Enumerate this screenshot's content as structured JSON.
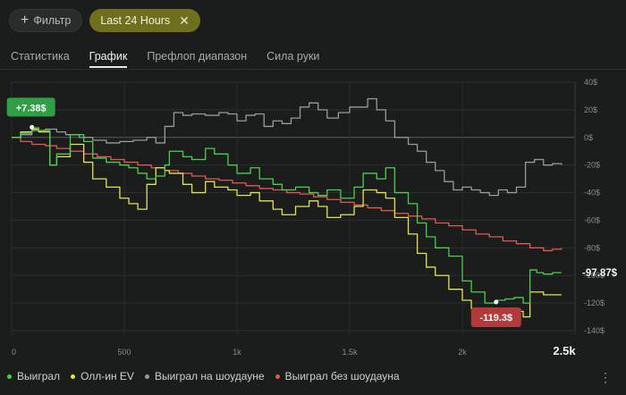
{
  "filters": {
    "add_label": "Фильтр",
    "active_chip": "Last 24 Hours"
  },
  "tabs": [
    {
      "label": "Статистика",
      "active": false
    },
    {
      "label": "График",
      "active": true
    },
    {
      "label": "Префлоп диапазон",
      "active": false
    },
    {
      "label": "Сила руки",
      "active": false
    }
  ],
  "colors": {
    "won": "#4ccf4c",
    "allin_ev": "#e4e34a",
    "showdown": "#9a9a9a",
    "no_showdown": "#e05a55"
  },
  "chart_data": {
    "type": "line",
    "x_ticks": [
      "0",
      "500",
      "1k",
      "1.5k",
      "2k",
      "2.5k"
    ],
    "y_ticks": [
      "40$",
      "20$",
      "0$",
      "-20$",
      "-40$",
      "-60$",
      "-80$",
      "-100$",
      "-120$",
      "-140$"
    ],
    "xlim": [
      0,
      2500
    ],
    "ylim": [
      -140,
      40
    ],
    "grid": true,
    "legend_position": "bottom-left",
    "annotations": {
      "max_label": "+7.38$",
      "min_label": "-119.3$",
      "end_label": "-97.87$"
    },
    "series": [
      {
        "name": "Выиграл",
        "color": "#4ccf4c",
        "x": [
          0,
          40,
          90,
          120,
          170,
          200,
          260,
          320,
          360,
          420,
          480,
          520,
          560,
          600,
          640,
          680,
          700,
          760,
          800,
          860,
          900,
          960,
          1000,
          1060,
          1100,
          1160,
          1200,
          1260,
          1320,
          1360,
          1400,
          1460,
          1520,
          1560,
          1620,
          1660,
          1700,
          1760,
          1800,
          1840,
          1880,
          1940,
          2000,
          2040,
          2100,
          2150,
          2190,
          2230,
          2270,
          2300,
          2330,
          2360,
          2400,
          2440
        ],
        "y": [
          0,
          3,
          7,
          5,
          -20,
          -12,
          2,
          -3,
          -15,
          -18,
          -20,
          -22,
          -26,
          -30,
          -28,
          -20,
          -10,
          -14,
          -16,
          -8,
          -12,
          -20,
          -26,
          -22,
          -30,
          -34,
          -38,
          -36,
          -40,
          -42,
          -38,
          -44,
          -36,
          -26,
          -30,
          -22,
          -40,
          -48,
          -62,
          -72,
          -80,
          -86,
          -104,
          -112,
          -120,
          -118,
          -117,
          -116,
          -120,
          -96,
          -98,
          -99,
          -98,
          -98
        ]
      },
      {
        "name": "Олл-ин EV",
        "color": "#e4e34a",
        "x": [
          0,
          40,
          90,
          120,
          170,
          200,
          260,
          320,
          360,
          420,
          480,
          520,
          560,
          600,
          640,
          680,
          700,
          760,
          800,
          860,
          900,
          960,
          1000,
          1060,
          1100,
          1160,
          1200,
          1260,
          1320,
          1360,
          1400,
          1460,
          1520,
          1560,
          1620,
          1660,
          1700,
          1760,
          1800,
          1840,
          1880,
          1940,
          2000,
          2040,
          2100,
          2150,
          2190,
          2230,
          2270,
          2300,
          2330,
          2360,
          2400,
          2440
        ],
        "y": [
          0,
          4,
          6,
          4,
          -20,
          -14,
          -5,
          -18,
          -30,
          -36,
          -44,
          -48,
          -52,
          -34,
          -22,
          -24,
          -26,
          -34,
          -40,
          -32,
          -36,
          -38,
          -42,
          -40,
          -46,
          -52,
          -56,
          -50,
          -46,
          -50,
          -58,
          -56,
          -50,
          -38,
          -40,
          -44,
          -58,
          -70,
          -84,
          -94,
          -100,
          -110,
          -118,
          -124,
          -128,
          -130,
          -128,
          -126,
          -130,
          -112,
          -112,
          -114,
          -114,
          -114
        ]
      },
      {
        "name": "Выиграл на шоудауне",
        "color": "#9a9a9a",
        "x": [
          0,
          40,
          90,
          150,
          200,
          240,
          300,
          360,
          420,
          480,
          540,
          600,
          640,
          680,
          720,
          760,
          800,
          860,
          920,
          960,
          1000,
          1040,
          1080,
          1120,
          1160,
          1200,
          1240,
          1280,
          1320,
          1360,
          1400,
          1450,
          1500,
          1540,
          1580,
          1620,
          1660,
          1700,
          1760,
          1800,
          1840,
          1880,
          1920,
          1960,
          2000,
          2040,
          2080,
          2120,
          2160,
          2200,
          2240,
          2280,
          2320,
          2360,
          2400,
          2440
        ],
        "y": [
          0,
          2,
          5,
          6,
          4,
          2,
          0,
          -2,
          -4,
          -3,
          -2,
          0,
          -4,
          8,
          18,
          16,
          17,
          16,
          18,
          17,
          12,
          16,
          17,
          8,
          12,
          10,
          14,
          22,
          25,
          20,
          14,
          18,
          22,
          22,
          28,
          20,
          12,
          0,
          -5,
          -10,
          -18,
          -24,
          -32,
          -38,
          -36,
          -38,
          -40,
          -42,
          -38,
          -40,
          -36,
          -18,
          -16,
          -20,
          -19,
          -20
        ]
      },
      {
        "name": "Выиграл без шоудауна",
        "color": "#e05a55",
        "x": [
          0,
          40,
          90,
          150,
          200,
          260,
          320,
          380,
          440,
          500,
          560,
          620,
          680,
          740,
          800,
          860,
          920,
          980,
          1040,
          1100,
          1160,
          1220,
          1280,
          1340,
          1400,
          1460,
          1520,
          1580,
          1640,
          1700,
          1760,
          1820,
          1880,
          1940,
          2000,
          2060,
          2120,
          2180,
          2240,
          2300,
          2360,
          2400,
          2440
        ],
        "y": [
          0,
          -3,
          -5,
          -6,
          -8,
          -10,
          -12,
          -14,
          -16,
          -18,
          -20,
          -22,
          -24,
          -26,
          -28,
          -30,
          -31,
          -33,
          -35,
          -37,
          -38,
          -40,
          -41,
          -43,
          -45,
          -47,
          -49,
          -51,
          -53,
          -55,
          -57,
          -59,
          -62,
          -64,
          -67,
          -70,
          -72,
          -75,
          -77,
          -80,
          -82,
          -81,
          -80
        ]
      }
    ]
  }
}
